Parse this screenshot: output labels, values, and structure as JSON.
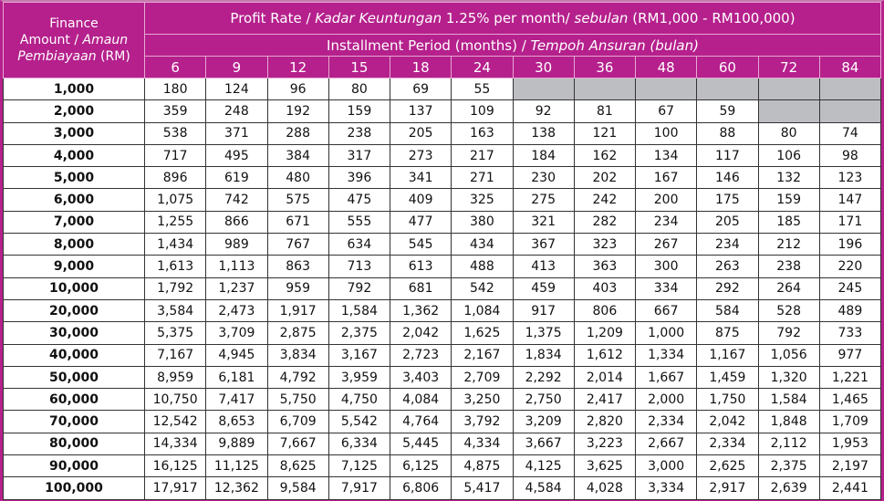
{
  "header": {
    "corner": {
      "line1": "Finance",
      "line2a": "Amount / ",
      "line2b": "Amaun",
      "line3a": "Pembiayaan",
      "line3b": " (RM)"
    },
    "title": {
      "a": "Profit Rate / ",
      "b": "Kadar Keuntungan",
      "c": " 1.25% per month/ ",
      "d": "sebulan",
      "e": " (RM1,000 - RM100,000)"
    },
    "subtitle": {
      "a": "Installment Period (months) / ",
      "b": "Tempoh Ansuran (bulan)"
    },
    "periods": [
      "6",
      "9",
      "12",
      "15",
      "18",
      "24",
      "30",
      "36",
      "48",
      "60",
      "72",
      "84"
    ]
  },
  "colors": {
    "header_bg": "#b5208c",
    "unavailable": "#bdbec2"
  },
  "rows": [
    {
      "amount": "1,000",
      "values": [
        "180",
        "124",
        "96",
        "80",
        "69",
        "55",
        null,
        null,
        null,
        null,
        null,
        null
      ]
    },
    {
      "amount": "2,000",
      "values": [
        "359",
        "248",
        "192",
        "159",
        "137",
        "109",
        "92",
        "81",
        "67",
        "59",
        null,
        null
      ]
    },
    {
      "amount": "3,000",
      "values": [
        "538",
        "371",
        "288",
        "238",
        "205",
        "163",
        "138",
        "121",
        "100",
        "88",
        "80",
        "74"
      ]
    },
    {
      "amount": "4,000",
      "values": [
        "717",
        "495",
        "384",
        "317",
        "273",
        "217",
        "184",
        "162",
        "134",
        "117",
        "106",
        "98"
      ]
    },
    {
      "amount": "5,000",
      "values": [
        "896",
        "619",
        "480",
        "396",
        "341",
        "271",
        "230",
        "202",
        "167",
        "146",
        "132",
        "123"
      ]
    },
    {
      "amount": "6,000",
      "values": [
        "1,075",
        "742",
        "575",
        "475",
        "409",
        "325",
        "275",
        "242",
        "200",
        "175",
        "159",
        "147"
      ]
    },
    {
      "amount": "7,000",
      "values": [
        "1,255",
        "866",
        "671",
        "555",
        "477",
        "380",
        "321",
        "282",
        "234",
        "205",
        "185",
        "171"
      ]
    },
    {
      "amount": "8,000",
      "values": [
        "1,434",
        "989",
        "767",
        "634",
        "545",
        "434",
        "367",
        "323",
        "267",
        "234",
        "212",
        "196"
      ]
    },
    {
      "amount": "9,000",
      "values": [
        "1,613",
        "1,113",
        "863",
        "713",
        "613",
        "488",
        "413",
        "363",
        "300",
        "263",
        "238",
        "220"
      ]
    },
    {
      "amount": "10,000",
      "values": [
        "1,792",
        "1,237",
        "959",
        "792",
        "681",
        "542",
        "459",
        "403",
        "334",
        "292",
        "264",
        "245"
      ]
    },
    {
      "amount": "20,000",
      "values": [
        "3,584",
        "2,473",
        "1,917",
        "1,584",
        "1,362",
        "1,084",
        "917",
        "806",
        "667",
        "584",
        "528",
        "489"
      ]
    },
    {
      "amount": "30,000",
      "values": [
        "5,375",
        "3,709",
        "2,875",
        "2,375",
        "2,042",
        "1,625",
        "1,375",
        "1,209",
        "1,000",
        "875",
        "792",
        "733"
      ]
    },
    {
      "amount": "40,000",
      "values": [
        "7,167",
        "4,945",
        "3,834",
        "3,167",
        "2,723",
        "2,167",
        "1,834",
        "1,612",
        "1,334",
        "1,167",
        "1,056",
        "977"
      ]
    },
    {
      "amount": "50,000",
      "values": [
        "8,959",
        "6,181",
        "4,792",
        "3,959",
        "3,403",
        "2,709",
        "2,292",
        "2,014",
        "1,667",
        "1,459",
        "1,320",
        "1,221"
      ]
    },
    {
      "amount": "60,000",
      "values": [
        "10,750",
        "7,417",
        "5,750",
        "4,750",
        "4,084",
        "3,250",
        "2,750",
        "2,417",
        "2,000",
        "1,750",
        "1,584",
        "1,465"
      ]
    },
    {
      "amount": "70,000",
      "values": [
        "12,542",
        "8,653",
        "6,709",
        "5,542",
        "4,764",
        "3,792",
        "3,209",
        "2,820",
        "2,334",
        "2,042",
        "1,848",
        "1,709"
      ]
    },
    {
      "amount": "80,000",
      "values": [
        "14,334",
        "9,889",
        "7,667",
        "6,334",
        "5,445",
        "4,334",
        "3,667",
        "3,223",
        "2,667",
        "2,334",
        "2,112",
        "1,953"
      ]
    },
    {
      "amount": "90,000",
      "values": [
        "16,125",
        "11,125",
        "8,625",
        "7,125",
        "6,125",
        "4,875",
        "4,125",
        "3,625",
        "3,000",
        "2,625",
        "2,375",
        "2,197"
      ]
    },
    {
      "amount": "100,000",
      "values": [
        "17,917",
        "12,362",
        "9,584",
        "7,917",
        "6,806",
        "5,417",
        "4,584",
        "4,028",
        "3,334",
        "2,917",
        "2,639",
        "2,441"
      ]
    }
  ]
}
